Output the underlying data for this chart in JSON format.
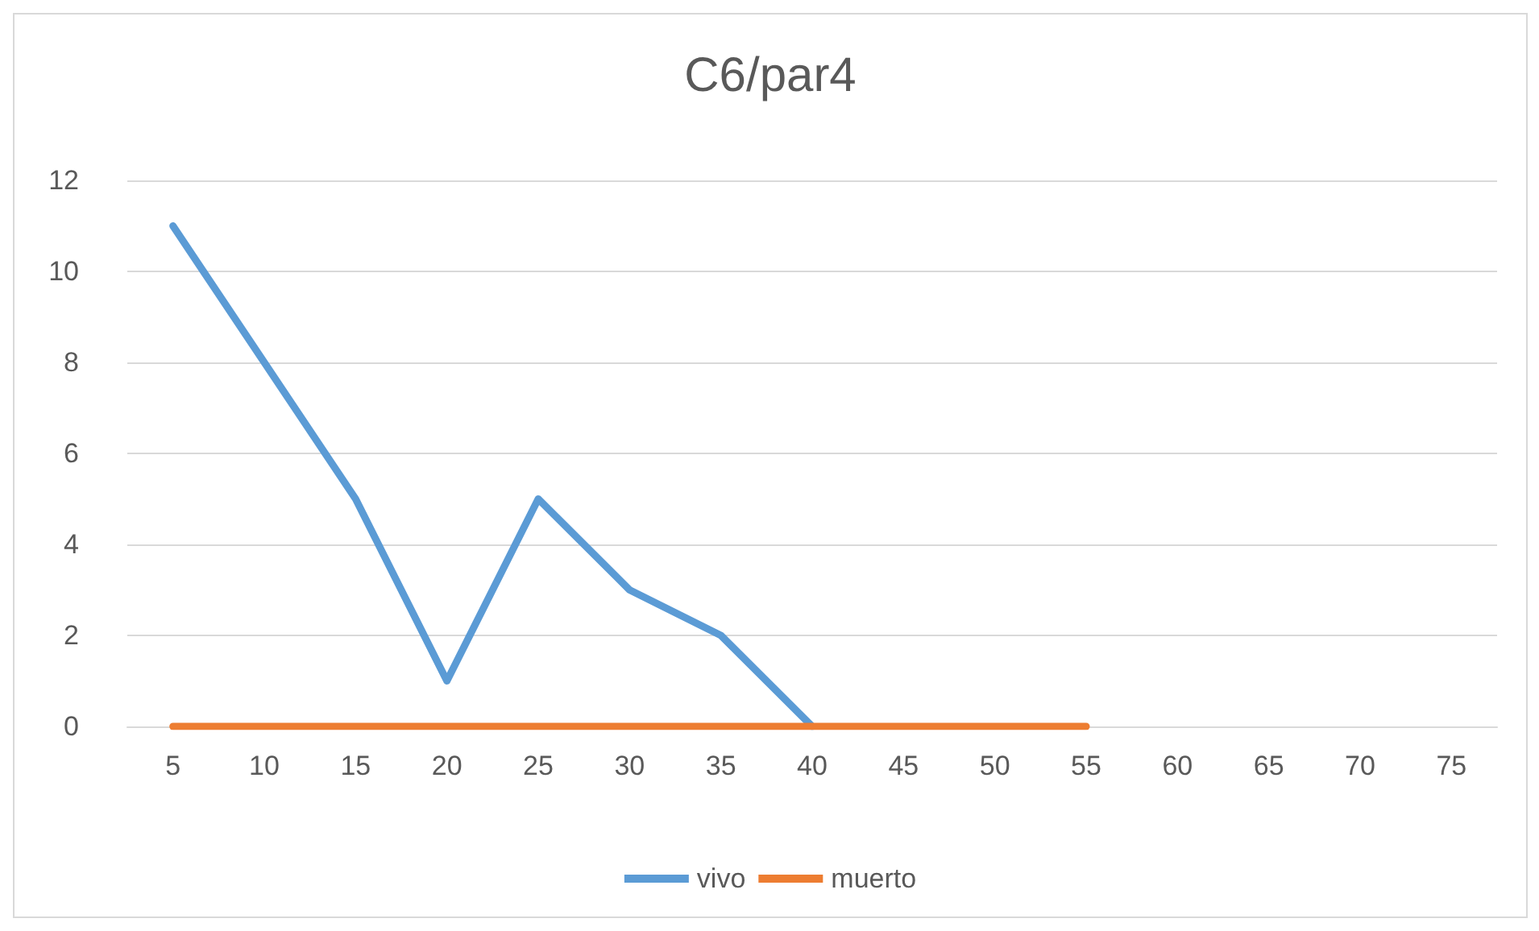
{
  "chart_data": {
    "type": "line",
    "title": "C6/par4",
    "categories": [
      "5",
      "10",
      "15",
      "20",
      "25",
      "30",
      "35",
      "40",
      "45",
      "50",
      "55",
      "60",
      "65",
      "70",
      "75"
    ],
    "series": [
      {
        "name": "vivo",
        "color": "#5b9bd5",
        "values": [
          11,
          8,
          5,
          1,
          5,
          3,
          2,
          0,
          null,
          null,
          null,
          null,
          null,
          null,
          null
        ]
      },
      {
        "name": "muerto",
        "color": "#ed7d31",
        "values": [
          0,
          0,
          0,
          0,
          0,
          0,
          0,
          0,
          0,
          0,
          0,
          null,
          null,
          null,
          null
        ]
      }
    ],
    "ylim": [
      0,
      12
    ],
    "yticks": [
      0,
      2,
      4,
      6,
      8,
      10,
      12
    ],
    "grid": "y",
    "legend": "bottom",
    "marker": "none",
    "line_style": "solid"
  }
}
